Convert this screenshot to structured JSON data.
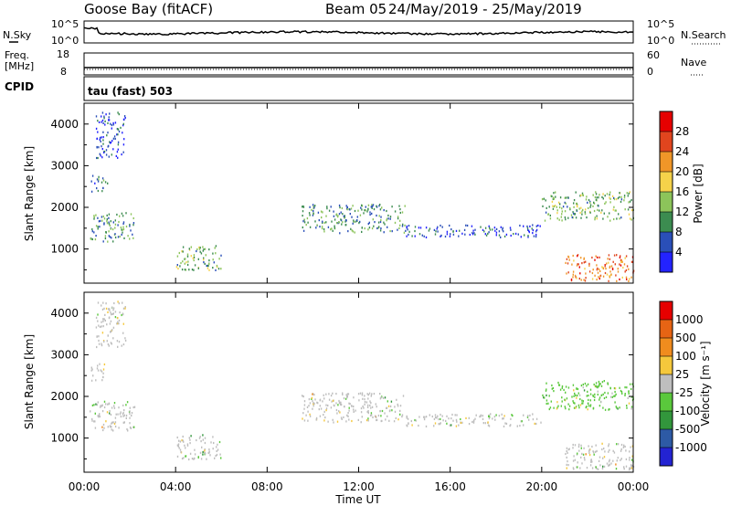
{
  "header": {
    "station": "Goose Bay (fitACF)",
    "beam": "Beam 05",
    "dates": "24/May/2019 - 25/May/2019"
  },
  "panels": {
    "nsky_label": "N.Sky",
    "nsearch_label": "N.Search",
    "freq_label_1": "Freq.",
    "freq_label_2": "[MHz]",
    "nave_label": "Nave",
    "cpid_label": "CPID",
    "cpid_value": "tau (fast) 503",
    "noise_ticks_left": [
      "10^5",
      "10^0"
    ],
    "noise_ticks_right": [
      "10^5",
      "10^0"
    ],
    "freq_ticks_left": [
      "18",
      "8"
    ],
    "nave_ticks_right": [
      "60",
      "0"
    ]
  },
  "colorbars": {
    "power": {
      "label": "Power [dB]",
      "ticks": [
        "28",
        "24",
        "20",
        "16",
        "12",
        "8",
        "4"
      ],
      "colors": [
        "#2323ff",
        "#2a4fb8",
        "#3c8c50",
        "#8cc45a",
        "#f5d24a",
        "#f09628",
        "#e1451e",
        "#e60000"
      ]
    },
    "velocity": {
      "label": "Velocity [m s⁻¹]",
      "ticks": [
        "1000",
        "500",
        "100",
        "25",
        "-25",
        "-100",
        "-500",
        "-1000"
      ],
      "colors": [
        "#2323d2",
        "#2d5aa5",
        "#32963c",
        "#5ac83c",
        "#bebebe",
        "#f5c83c",
        "#f08c1e",
        "#e66414",
        "#e60000"
      ]
    }
  },
  "chart_data": [
    {
      "type": "heatmap",
      "title": "Power",
      "ylabel": "Slant Range [km]",
      "xlabel": "Time UT",
      "x_range_hours": [
        0,
        24
      ],
      "xticks": [
        "00:00",
        "04:00",
        "08:00",
        "12:00",
        "16:00",
        "20:00",
        "00:00"
      ],
      "ylim": [
        180,
        4500
      ],
      "yticks": [
        1000,
        2000,
        3000,
        4000
      ],
      "colorbar": "Power [dB]",
      "echo_regions": [
        {
          "t": [
            0.2,
            2.2
          ],
          "r": [
            1200,
            1900
          ],
          "power_db": 10
        },
        {
          "t": [
            0.3,
            1.0
          ],
          "r": [
            2400,
            2800
          ],
          "power_db": 8
        },
        {
          "t": [
            0.5,
            1.8
          ],
          "r": [
            3200,
            4300
          ],
          "power_db": 6
        },
        {
          "t": [
            4.0,
            6.0
          ],
          "r": [
            500,
            1100
          ],
          "power_db": 12
        },
        {
          "t": [
            9.5,
            14.0
          ],
          "r": [
            1400,
            2100
          ],
          "power_db": 10
        },
        {
          "t": [
            14.0,
            20.0
          ],
          "r": [
            1300,
            1600
          ],
          "power_db": 6
        },
        {
          "t": [
            20.0,
            24.0
          ],
          "r": [
            1700,
            2400
          ],
          "power_db": 12
        },
        {
          "t": [
            21.0,
            24.0
          ],
          "r": [
            250,
            900
          ],
          "power_db": 24
        }
      ]
    },
    {
      "type": "heatmap",
      "title": "Velocity",
      "ylabel": "Slant Range [km]",
      "xlabel": "Time UT",
      "x_range_hours": [
        0,
        24
      ],
      "xticks": [
        "00:00",
        "04:00",
        "08:00",
        "12:00",
        "16:00",
        "20:00",
        "00:00"
      ],
      "ylim": [
        180,
        4500
      ],
      "yticks": [
        1000,
        2000,
        3000,
        4000
      ],
      "colorbar": "Velocity [m s⁻¹]",
      "echo_regions": [
        {
          "t": [
            0.2,
            2.2
          ],
          "r": [
            1200,
            1900
          ],
          "velocity_ms": 0
        },
        {
          "t": [
            0.3,
            1.0
          ],
          "r": [
            2400,
            2800
          ],
          "velocity_ms": 0
        },
        {
          "t": [
            0.5,
            1.8
          ],
          "r": [
            3200,
            4300
          ],
          "velocity_ms": 0
        },
        {
          "t": [
            4.0,
            6.0
          ],
          "r": [
            500,
            1100
          ],
          "velocity_ms": 0
        },
        {
          "t": [
            9.5,
            14.0
          ],
          "r": [
            1400,
            2100
          ],
          "velocity_ms": 0
        },
        {
          "t": [
            14.0,
            20.0
          ],
          "r": [
            1300,
            1600
          ],
          "velocity_ms": 0
        },
        {
          "t": [
            20.0,
            24.0
          ],
          "r": [
            1700,
            2400
          ],
          "velocity_ms": 40
        },
        {
          "t": [
            21.0,
            24.0
          ],
          "r": [
            250,
            900
          ],
          "velocity_ms": 0
        }
      ]
    }
  ]
}
